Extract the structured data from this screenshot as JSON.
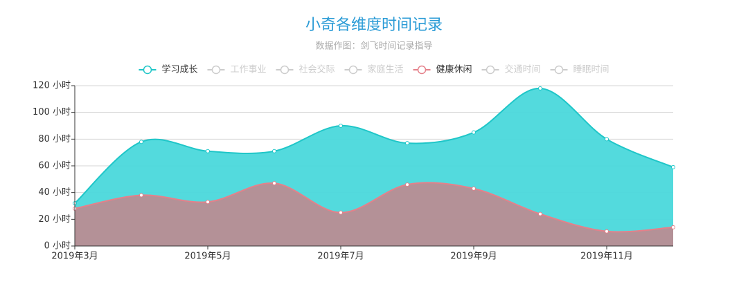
{
  "chart_data": {
    "type": "area",
    "title": "小奇各维度时间记录",
    "subtitle": "数据作图：剑飞时间记录指导",
    "categories": [
      "2019年3月",
      null,
      "2019年5月",
      null,
      "2019年7月",
      null,
      "2019年9月",
      null,
      "2019年11月",
      null
    ],
    "ylim": [
      0,
      120
    ],
    "yticks": [
      {
        "value": 0,
        "label": "0 小时"
      },
      {
        "value": 20,
        "label": "20 小时"
      },
      {
        "value": 40,
        "label": "40 小时"
      },
      {
        "value": 60,
        "label": "60 小时"
      },
      {
        "value": 80,
        "label": "80 小时"
      },
      {
        "value": 100,
        "label": "100 小时"
      },
      {
        "value": 120,
        "label": "120 小时"
      }
    ],
    "grid": true,
    "smooth": true,
    "series": [
      {
        "name": "学习成长",
        "color": "#1fc6c8",
        "area_color": "#4ad8db",
        "selected": true,
        "values": [
          32,
          78,
          71,
          71,
          90,
          77,
          85,
          118,
          80,
          59
        ]
      },
      {
        "name": "工作事业",
        "color": "#cccccc",
        "selected": false,
        "values": [
          null,
          null,
          null,
          null,
          null,
          null,
          null,
          null,
          null,
          null
        ]
      },
      {
        "name": "社会交际",
        "color": "#cccccc",
        "selected": false,
        "values": [
          null,
          null,
          null,
          null,
          null,
          null,
          null,
          null,
          null,
          null
        ]
      },
      {
        "name": "家庭生活",
        "color": "#cccccc",
        "selected": false,
        "values": [
          null,
          null,
          null,
          null,
          null,
          null,
          null,
          null,
          null,
          null
        ]
      },
      {
        "name": "健康休闲",
        "color": "#e5808a",
        "area_color": "#b98d92",
        "selected": true,
        "values": [
          28,
          38,
          33,
          47,
          25,
          46,
          43,
          24,
          11,
          14
        ]
      },
      {
        "name": "交通时间",
        "color": "#cccccc",
        "selected": false,
        "values": [
          null,
          null,
          null,
          null,
          null,
          null,
          null,
          null,
          null,
          null
        ]
      },
      {
        "name": "睡眠时间",
        "color": "#cccccc",
        "selected": false,
        "values": [
          null,
          null,
          null,
          null,
          null,
          null,
          null,
          null,
          null,
          null
        ]
      }
    ]
  }
}
